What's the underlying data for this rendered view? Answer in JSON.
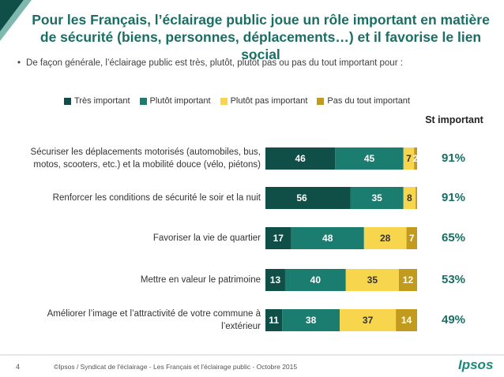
{
  "chart_data": {
    "type": "stacked-bar-horizontal",
    "title": "Pour les Français, l’éclairage public joue un rôle important en matière de sécurité (biens, personnes, déplacements…) et il favorise le lien social",
    "subtitle": "De façon générale, l’éclairage public est très, plutôt, plutôt pas ou pas du tout important pour :",
    "categories": [
      "Sécuriser les déplacements motorisés (automobiles, bus, motos, scooters, etc.) et la mobilité douce (vélo, piétons)",
      "Renforcer les conditions de sécurité le soir et la nuit",
      "Favoriser la vie de quartier",
      "Mettre en valeur le patrimoine",
      "Améliorer l’image et l’attractivité de votre commune à l’extérieur"
    ],
    "series": [
      {
        "name": "Très important",
        "color": "#0f4f47",
        "values": [
          46,
          56,
          17,
          13,
          11
        ]
      },
      {
        "name": "Plutôt important",
        "color": "#1b7d70",
        "values": [
          45,
          35,
          48,
          40,
          38
        ]
      },
      {
        "name": "Plutôt pas important",
        "color": "#f7d64e",
        "values": [
          7,
          8,
          28,
          35,
          37
        ]
      },
      {
        "name": "Pas du tout important",
        "color": "#c29a1e",
        "values": [
          2,
          1,
          7,
          12,
          14
        ],
        "value_labels": [
          "2",
          null,
          "7",
          "12",
          "14"
        ]
      }
    ],
    "xlim": [
      0,
      100
    ],
    "totals_header": "St important",
    "totals": [
      {
        "value": 91,
        "label": "91%"
      },
      {
        "value": 91,
        "label": "91%"
      },
      {
        "value": 65,
        "label": "65%"
      },
      {
        "value": 53,
        "label": "53%"
      },
      {
        "value": 49,
        "label": "49%"
      }
    ],
    "footer": {
      "page": "4",
      "source": "©Ipsos / Syndicat de l'éclairage - Les Français et l'éclairage public - Octobre 2015",
      "logo": "Ipsos"
    }
  }
}
